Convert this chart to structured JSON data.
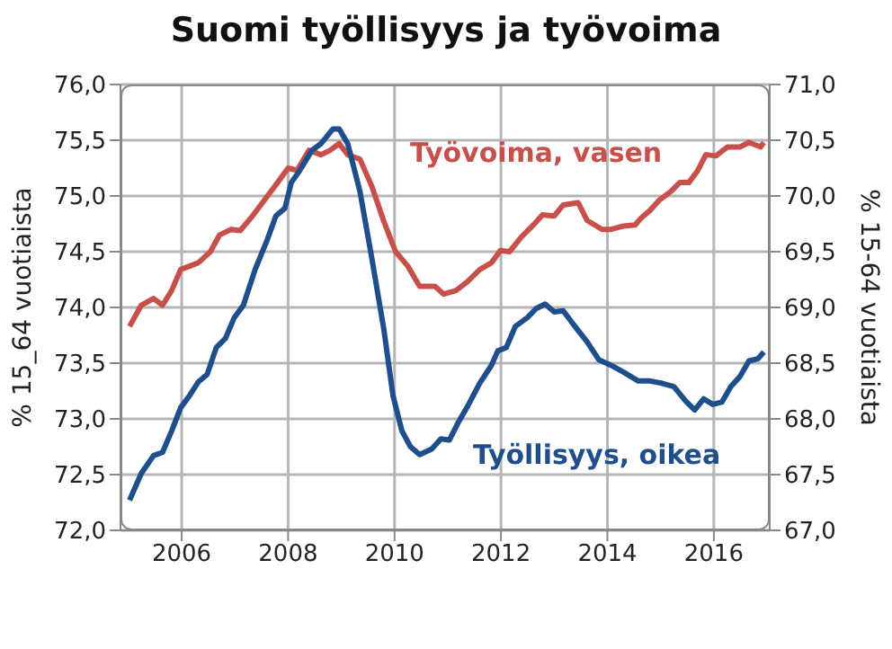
{
  "chart_data": {
    "type": "line",
    "title": "Suomi työllisyys ja työvoima",
    "ylabel": "% 15_64 vuotiaista",
    "y2label": "% 15-64 vuotiaista",
    "xlim": [
      2004.85,
      2017.05
    ],
    "xticks": [
      2006,
      2008,
      2010,
      2012,
      2014,
      2016
    ],
    "ylim": [
      72,
      76
    ],
    "yticks": [
      {
        "value": 72,
        "label": "72,0"
      },
      {
        "value": 72.5,
        "label": "72,5"
      },
      {
        "value": 73,
        "label": "73,0"
      },
      {
        "value": 73.5,
        "label": "73,5"
      },
      {
        "value": 74,
        "label": "74,0"
      },
      {
        "value": 74.5,
        "label": "74,5"
      },
      {
        "value": 75,
        "label": "75,0"
      },
      {
        "value": 75.5,
        "label": "75,5"
      },
      {
        "value": 76,
        "label": "76,0"
      }
    ],
    "y2lim": [
      67,
      71
    ],
    "y2ticks": [
      {
        "value": 67,
        "label": "67,0"
      },
      {
        "value": 67.5,
        "label": "67,5"
      },
      {
        "value": 68,
        "label": "68,0"
      },
      {
        "value": 68.5,
        "label": "68,5"
      },
      {
        "value": 69,
        "label": "69,0"
      },
      {
        "value": 69.5,
        "label": "69,5"
      },
      {
        "value": 70,
        "label": "70,0"
      },
      {
        "value": 70.5,
        "label": "70,5"
      },
      {
        "value": 71,
        "label": "71,0"
      }
    ],
    "grid": true,
    "legend": false,
    "marker": "none",
    "line_style": "solid",
    "series": [
      {
        "name": "Työvoima, vasen",
        "color": "#c8504b",
        "axis": "y",
        "x": [
          2005.02,
          2005.24,
          2005.47,
          2005.64,
          2005.81,
          2005.98,
          2006.31,
          2006.54,
          2006.71,
          2006.93,
          2007.1,
          2007.33,
          2007.55,
          2007.77,
          2008.0,
          2008.17,
          2008.39,
          2008.62,
          2008.79,
          2008.96,
          2009.12,
          2009.35,
          2009.57,
          2009.8,
          2010.02,
          2010.25,
          2010.47,
          2010.76,
          2010.92,
          2011.15,
          2011.37,
          2011.6,
          2011.82,
          2011.99,
          2012.16,
          2012.38,
          2012.61,
          2012.78,
          2013.0,
          2013.17,
          2013.45,
          2013.62,
          2013.9,
          2014.07,
          2014.3,
          2014.52,
          2014.63,
          2014.8,
          2014.97,
          2015.19,
          2015.36,
          2015.53,
          2015.7,
          2015.85,
          2016.04,
          2016.26,
          2016.49,
          2016.66,
          2016.88,
          2016.94
        ],
        "values": [
          73.83,
          74.02,
          74.08,
          74.02,
          74.15,
          74.34,
          74.4,
          74.5,
          74.65,
          74.7,
          74.69,
          74.82,
          74.96,
          75.1,
          75.25,
          75.23,
          75.41,
          75.37,
          75.41,
          75.47,
          75.37,
          75.33,
          75.09,
          74.77,
          74.5,
          74.37,
          74.19,
          74.19,
          74.12,
          74.15,
          74.23,
          74.34,
          74.4,
          74.51,
          74.5,
          74.63,
          74.74,
          74.83,
          74.82,
          74.92,
          74.94,
          74.78,
          74.7,
          74.7,
          74.73,
          74.74,
          74.8,
          74.87,
          74.96,
          75.04,
          75.12,
          75.12,
          75.23,
          75.37,
          75.36,
          75.44,
          75.44,
          75.48,
          75.44,
          75.48
        ]
      },
      {
        "name": "Työllisyys, oikea",
        "color": "#1f4e8c",
        "axis": "y2",
        "x": [
          2005.02,
          2005.24,
          2005.47,
          2005.64,
          2005.81,
          2005.98,
          2006.15,
          2006.31,
          2006.48,
          2006.65,
          2006.82,
          2006.99,
          2007.16,
          2007.38,
          2007.61,
          2007.77,
          2007.94,
          2008.06,
          2008.22,
          2008.45,
          2008.62,
          2008.84,
          2008.96,
          2009.12,
          2009.35,
          2009.57,
          2009.8,
          2009.97,
          2010.14,
          2010.3,
          2010.47,
          2010.7,
          2010.87,
          2011.03,
          2011.2,
          2011.37,
          2011.6,
          2011.82,
          2011.94,
          2012.1,
          2012.27,
          2012.5,
          2012.66,
          2012.83,
          2013.0,
          2013.17,
          2013.39,
          2013.62,
          2013.84,
          2014.07,
          2014.3,
          2014.58,
          2014.8,
          2015.02,
          2015.25,
          2015.47,
          2015.64,
          2015.81,
          2015.98,
          2016.15,
          2016.32,
          2016.49,
          2016.66,
          2016.83,
          2016.94
        ],
        "values": [
          67.27,
          67.51,
          67.67,
          67.7,
          67.89,
          68.1,
          68.21,
          68.33,
          68.4,
          68.64,
          68.72,
          68.91,
          69.02,
          69.34,
          69.61,
          69.82,
          69.89,
          70.12,
          70.23,
          70.41,
          70.47,
          70.6,
          70.6,
          70.47,
          70.04,
          69.45,
          68.8,
          68.21,
          67.89,
          67.75,
          67.68,
          67.73,
          67.82,
          67.81,
          67.97,
          68.11,
          68.32,
          68.48,
          68.61,
          68.64,
          68.83,
          68.91,
          68.99,
          69.03,
          68.96,
          68.97,
          68.83,
          68.69,
          68.53,
          68.48,
          68.42,
          68.34,
          68.34,
          68.32,
          68.29,
          68.16,
          68.08,
          68.18,
          68.13,
          68.15,
          68.29,
          68.38,
          68.52,
          68.54,
          68.6
        ]
      }
    ]
  }
}
